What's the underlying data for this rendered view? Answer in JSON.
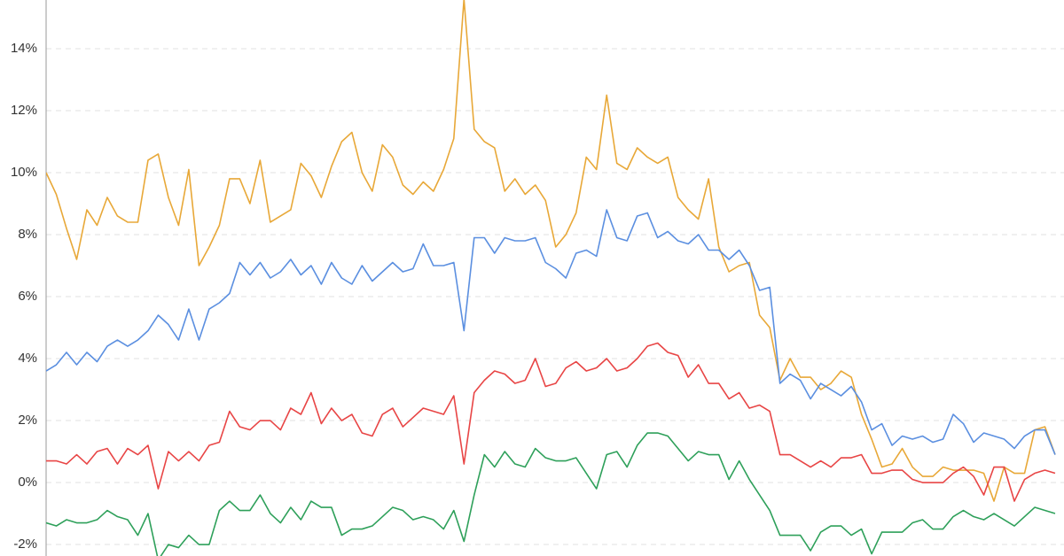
{
  "chart_data": {
    "type": "line",
    "ylim": [
      -2.37,
      15.57
    ],
    "yticks": [
      {
        "value": -2,
        "label": "-2%"
      },
      {
        "value": 0,
        "label": "0%"
      },
      {
        "value": 2,
        "label": "2%"
      },
      {
        "value": 4,
        "label": "4%"
      },
      {
        "value": 6,
        "label": "6%"
      },
      {
        "value": 8,
        "label": "8%"
      },
      {
        "value": 10,
        "label": "10%"
      },
      {
        "value": 12,
        "label": "12%"
      },
      {
        "value": 14,
        "label": "14%"
      }
    ],
    "grid": true,
    "series": [
      {
        "color": "#e8a838",
        "values": [
          10.0,
          9.3,
          8.2,
          7.2,
          8.8,
          8.3,
          9.2,
          8.6,
          8.4,
          8.4,
          10.4,
          10.6,
          9.2,
          8.3,
          10.1,
          7.0,
          7.6,
          8.3,
          9.8,
          9.8,
          9.0,
          10.4,
          8.4,
          8.6,
          8.8,
          10.3,
          9.9,
          9.2,
          10.2,
          11.0,
          11.3,
          10.0,
          9.4,
          10.9,
          10.5,
          9.6,
          9.3,
          9.7,
          9.4,
          10.1,
          11.1,
          15.6,
          11.4,
          11.0,
          10.8,
          9.4,
          9.8,
          9.3,
          9.6,
          9.1,
          7.6,
          8.0,
          8.7,
          10.5,
          10.1,
          12.5,
          10.3,
          10.1,
          10.8,
          10.5,
          10.3,
          10.5,
          9.2,
          8.8,
          8.5,
          9.8,
          7.6,
          6.8,
          7.0,
          7.1,
          5.4,
          5.0,
          3.3,
          4.0,
          3.4,
          3.4,
          3.0,
          3.2,
          3.6,
          3.4,
          2.2,
          1.4,
          0.5,
          0.6,
          1.1,
          0.5,
          0.2,
          0.2,
          0.5,
          0.4,
          0.4,
          0.4,
          0.3,
          -0.6,
          0.5,
          0.3,
          0.3,
          1.7,
          1.8,
          0.9
        ]
      },
      {
        "color": "#5b8fe0",
        "values": [
          3.6,
          3.8,
          4.2,
          3.8,
          4.2,
          3.9,
          4.4,
          4.6,
          4.4,
          4.6,
          4.9,
          5.4,
          5.1,
          4.6,
          5.6,
          4.6,
          5.6,
          5.8,
          6.1,
          7.1,
          6.7,
          7.1,
          6.6,
          6.8,
          7.2,
          6.7,
          7.0,
          6.4,
          7.1,
          6.6,
          6.4,
          7.0,
          6.5,
          6.8,
          7.1,
          6.8,
          6.9,
          7.7,
          7.0,
          7.0,
          7.1,
          4.9,
          7.9,
          7.9,
          7.4,
          7.9,
          7.8,
          7.8,
          7.9,
          7.1,
          6.9,
          6.6,
          7.4,
          7.5,
          7.3,
          8.8,
          7.9,
          7.8,
          8.6,
          8.7,
          7.9,
          8.1,
          7.8,
          7.7,
          8.0,
          7.5,
          7.5,
          7.2,
          7.5,
          7.0,
          6.2,
          6.3,
          3.2,
          3.5,
          3.3,
          2.7,
          3.2,
          3.0,
          2.8,
          3.1,
          2.6,
          1.7,
          1.9,
          1.2,
          1.5,
          1.4,
          1.5,
          1.3,
          1.4,
          2.2,
          1.9,
          1.3,
          1.6,
          1.5,
          1.4,
          1.1,
          1.5,
          1.7,
          1.7,
          0.9
        ]
      },
      {
        "color": "#e84545",
        "values": [
          0.7,
          0.7,
          0.6,
          0.9,
          0.6,
          1.0,
          1.1,
          0.6,
          1.1,
          0.9,
          1.2,
          -0.2,
          1.0,
          0.7,
          1.0,
          0.7,
          1.2,
          1.3,
          2.3,
          1.8,
          1.7,
          2.0,
          2.0,
          1.7,
          2.4,
          2.2,
          2.9,
          1.9,
          2.4,
          2.0,
          2.2,
          1.6,
          1.5,
          2.2,
          2.4,
          1.8,
          2.1,
          2.4,
          2.3,
          2.2,
          2.8,
          0.6,
          2.9,
          3.3,
          3.6,
          3.5,
          3.2,
          3.3,
          4.0,
          3.1,
          3.2,
          3.7,
          3.9,
          3.6,
          3.7,
          4.0,
          3.6,
          3.7,
          4.0,
          4.4,
          4.5,
          4.2,
          4.1,
          3.4,
          3.8,
          3.2,
          3.2,
          2.7,
          2.9,
          2.4,
          2.5,
          2.3,
          0.9,
          0.9,
          0.7,
          0.5,
          0.7,
          0.5,
          0.8,
          0.8,
          0.9,
          0.3,
          0.3,
          0.4,
          0.4,
          0.1,
          0.0,
          0.0,
          0.0,
          0.3,
          0.5,
          0.2,
          -0.4,
          0.5,
          0.5,
          -0.6,
          0.1,
          0.3,
          0.4,
          0.3
        ]
      },
      {
        "color": "#2ea05a",
        "values": [
          -1.3,
          -1.4,
          -1.2,
          -1.3,
          -1.3,
          -1.2,
          -0.9,
          -1.1,
          -1.2,
          -1.7,
          -1.0,
          -2.5,
          -2.0,
          -2.1,
          -1.7,
          -2.0,
          -2.0,
          -0.9,
          -0.6,
          -0.9,
          -0.9,
          -0.4,
          -1.0,
          -1.3,
          -0.8,
          -1.2,
          -0.6,
          -0.8,
          -0.8,
          -1.7,
          -1.5,
          -1.5,
          -1.4,
          -1.1,
          -0.8,
          -0.9,
          -1.2,
          -1.1,
          -1.2,
          -1.5,
          -0.9,
          -1.9,
          -0.4,
          0.9,
          0.5,
          1.0,
          0.6,
          0.5,
          1.1,
          0.8,
          0.7,
          0.7,
          0.8,
          0.3,
          -0.2,
          0.9,
          1.0,
          0.5,
          1.2,
          1.6,
          1.6,
          1.5,
          1.1,
          0.7,
          1.0,
          0.9,
          0.9,
          0.1,
          0.7,
          0.1,
          -0.4,
          -0.9,
          -1.7,
          -1.7,
          -1.7,
          -2.2,
          -1.6,
          -1.4,
          -1.4,
          -1.7,
          -1.5,
          -2.3,
          -1.6,
          -1.6,
          -1.6,
          -1.3,
          -1.2,
          -1.5,
          -1.5,
          -1.1,
          -0.9,
          -1.1,
          -1.2,
          -1.0,
          -1.2,
          -1.4,
          -1.1,
          -0.8,
          -0.9,
          -1.0
        ]
      }
    ]
  }
}
